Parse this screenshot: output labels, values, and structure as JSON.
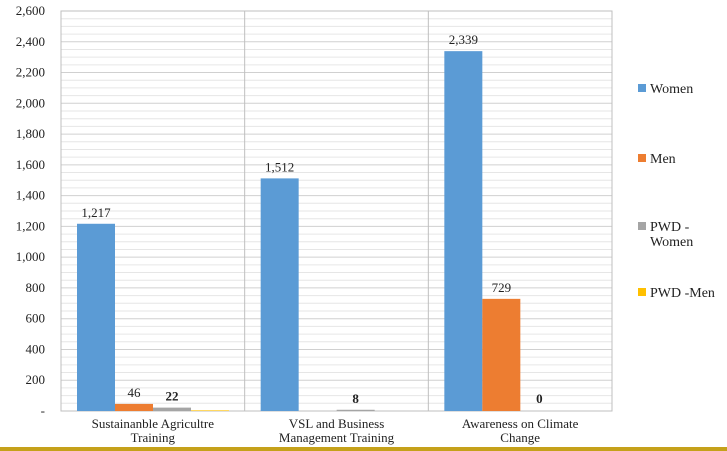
{
  "chart_data": {
    "type": "bar",
    "categories": [
      [
        "Sustainanble Agricultre",
        "Training"
      ],
      [
        "VSL and Business",
        "Management Training"
      ],
      [
        "Awareness on Climate",
        "Change"
      ]
    ],
    "series": [
      {
        "name": "Women",
        "color": "#5b9bd5",
        "values": [
          1217,
          1512,
          2339
        ],
        "labels": [
          "1,217",
          "1,512",
          "2,339"
        ],
        "bold": false
      },
      {
        "name": "Men",
        "color": "#ed7d31",
        "values": [
          46,
          0,
          729
        ],
        "labels": [
          "46",
          "",
          "729"
        ],
        "bold": false
      },
      {
        "name": "PWD - Women",
        "legend_lines": [
          "PWD -",
          "Women"
        ],
        "color": "#a5a5a5",
        "values": [
          22,
          8,
          0
        ],
        "labels": [
          "22",
          "8",
          "0"
        ],
        "bold": true
      },
      {
        "name": "PWD -Men",
        "legend_lines": [
          "PWD -Men"
        ],
        "color": "#ffc000",
        "values": [
          4,
          0,
          0
        ],
        "labels": [
          "",
          "",
          ""
        ],
        "bold": false
      }
    ],
    "y_ticks": [
      "-",
      "200",
      "400",
      "600",
      "800",
      "1,000",
      "1,200",
      "1,400",
      "1,600",
      "1,800",
      "2,000",
      "2,200",
      "2,400",
      "2,600"
    ],
    "ylim": [
      0,
      2600
    ],
    "grid": true,
    "legend_position": "right"
  }
}
